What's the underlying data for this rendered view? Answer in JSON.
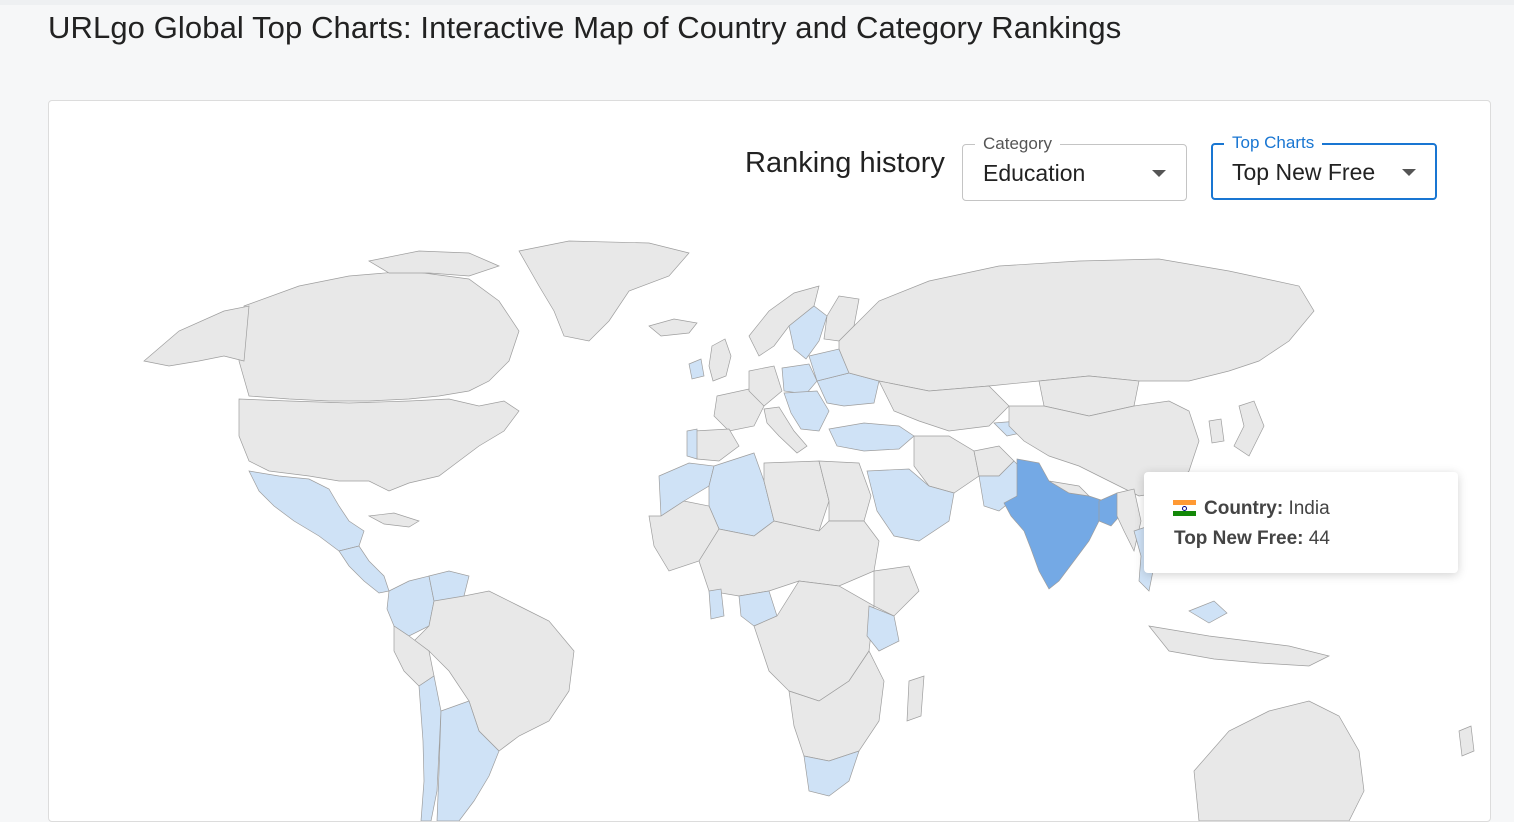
{
  "page": {
    "title": "URLgo Global Top Charts: Interactive Map of Country and Category Rankings"
  },
  "controls": {
    "ranking_label": "Ranking history",
    "category": {
      "legend": "Category",
      "value": "Education"
    },
    "top_charts": {
      "legend": "Top Charts",
      "value": "Top New Free"
    }
  },
  "map": {
    "colors": {
      "no_data": "#e8e8e8",
      "low": "#cfe2f6",
      "highlight": "#74a9e5",
      "border": "#9e9e9e"
    },
    "highlighted_country": "India",
    "ranked_countries": [
      "Mexico",
      "Guatemala",
      "Colombia",
      "Venezuela",
      "Argentina",
      "Chile",
      "Morocco",
      "Algeria",
      "Nigeria",
      "Ghana",
      "Kenya",
      "South Africa",
      "Saudi Arabia",
      "Turkey",
      "Pakistan",
      "Bangladesh",
      "Poland",
      "Ukraine",
      "Sweden",
      "Vietnam",
      "Malaysia",
      "Philippines",
      "Kazakhstan"
    ]
  },
  "tooltip": {
    "flag": "india-flag",
    "country_key": "Country:",
    "country_value": "India",
    "metric_key": "Top New Free:",
    "metric_value": "44"
  }
}
